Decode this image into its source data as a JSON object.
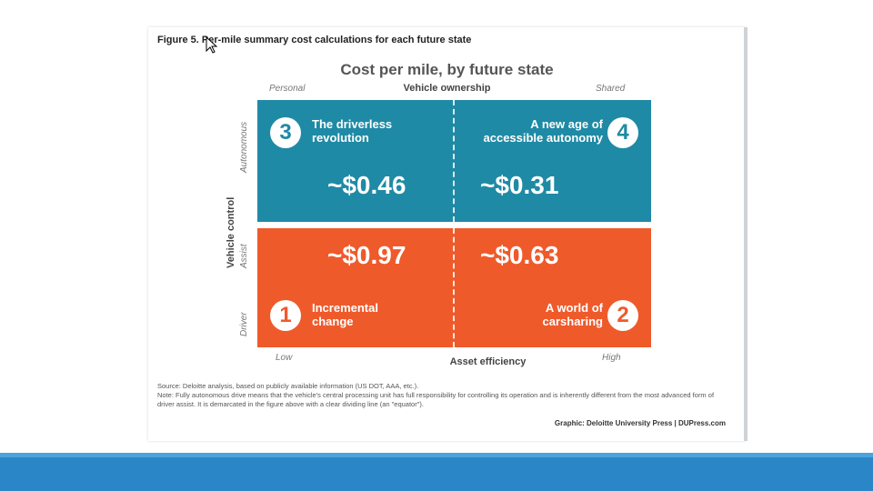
{
  "figure": {
    "title": "Figure 5. Per-mile summary cost calculations for each future state",
    "chart_title": "Cost per mile, by future state",
    "x_axis": {
      "title": "Vehicle ownership",
      "left_end": "Personal",
      "right_end": "Shared"
    },
    "bottom_axis": {
      "title": "Asset efficiency",
      "left_end": "Low",
      "right_end": "High"
    },
    "y_axis": {
      "title": "Vehicle control",
      "top_end": "Autonomous",
      "middle": "Assist",
      "bottom_end": "Driver"
    },
    "quadrants": [
      {
        "number": "3",
        "label_line1": "The driverless",
        "label_line2": "revolution",
        "cost": "~$0.46"
      },
      {
        "number": "4",
        "label_line1": "A new age of",
        "label_line2": "accessible autonomy",
        "cost": "~$0.31"
      },
      {
        "number": "1",
        "label_line1": "Incremental",
        "label_line2": "change",
        "cost": "~$0.97"
      },
      {
        "number": "2",
        "label_line1": "A world of",
        "label_line2": "carsharing",
        "cost": "~$0.63"
      }
    ],
    "source": "Source: Deloitte analysis, based on publicly available information (US DOT, AAA, etc.).",
    "note": "Note: Fully autonomous drive means that the vehicle's central processing unit has full responsibility for controlling its operation and is inherently different from the most advanced form of driver assist. It is demarcated in the figure above with a clear dividing line (an \"equator\").",
    "credit": "Graphic: Deloitte University Press | DUPress.com"
  },
  "colors": {
    "autonomous_panel": "#1f8aa5",
    "driver_panel": "#ef5a2b",
    "bottom_bar": "#2b86c8"
  }
}
